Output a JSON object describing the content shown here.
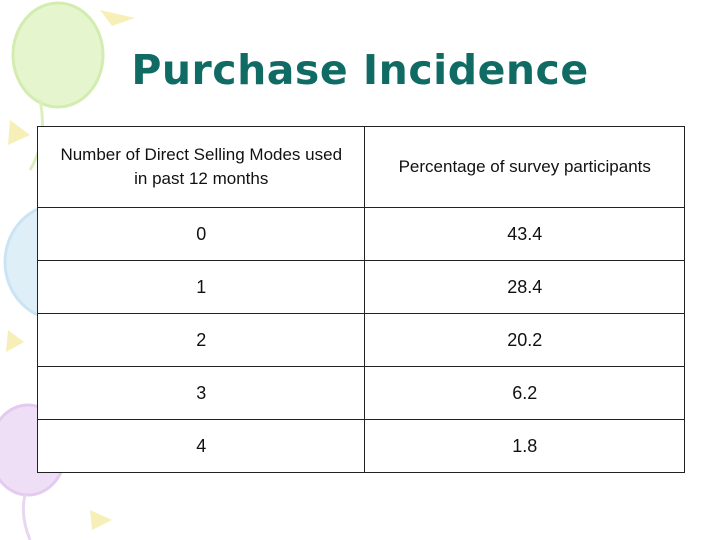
{
  "slide": {
    "title": "Purchase Incidence"
  },
  "table": {
    "headers": [
      "Number of Direct Selling Modes used in past 12 months",
      "Percentage of survey participants"
    ],
    "rows": [
      [
        "0",
        "43.4"
      ],
      [
        "1",
        "28.4"
      ],
      [
        "2",
        "20.2"
      ],
      [
        "3",
        "6.2"
      ],
      [
        "4",
        "1.8"
      ]
    ]
  },
  "decoration": {
    "balloon_colors": [
      "#dff3c4",
      "#d4e9f5",
      "#ead6f3",
      "#f8f1b8"
    ]
  }
}
